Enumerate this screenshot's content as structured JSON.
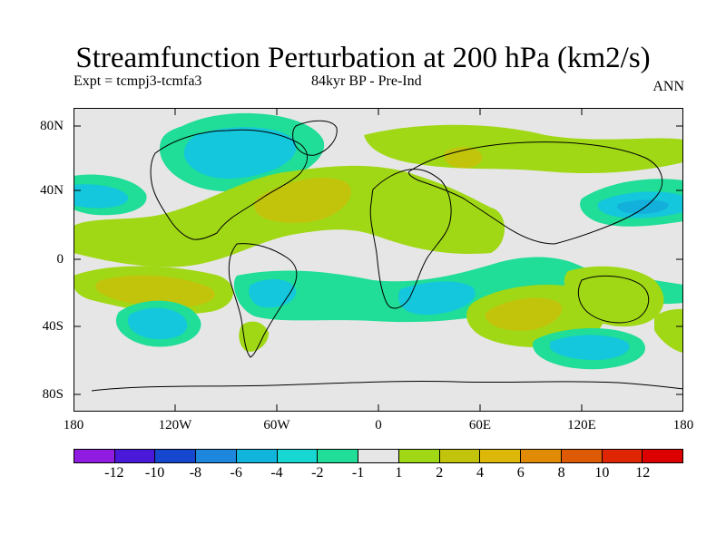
{
  "title": "Streamfunction Perturbation at 200 hPa (km2/s)",
  "left_label": "Expt = tcmpj3-tcmfa3",
  "center_label": "84kyr BP - Pre-Ind",
  "right_label": "ANN",
  "y_ticks": [
    "80N",
    "40N",
    "0",
    "40S",
    "80S"
  ],
  "x_ticks": [
    "180",
    "120W",
    "60W",
    "0",
    "60E",
    "120E",
    "180"
  ],
  "legend": {
    "labels": [
      "-12",
      "-10",
      "-8",
      "-6",
      "-4",
      "-2",
      "-1",
      "1",
      "2",
      "4",
      "6",
      "8",
      "10",
      "12"
    ],
    "colors": [
      "#8f1ce0",
      "#4a18d8",
      "#1547cf",
      "#1c87dd",
      "#11b5dc",
      "#17d7d2",
      "#20dd97",
      "#e6e6e6",
      "#a0d816",
      "#c2c40c",
      "#ddb808",
      "#e18a06",
      "#df5a04",
      "#df2604",
      "#dd0000"
    ]
  },
  "fill_colors": {
    "background": "#e6e6e6",
    "neg1": "#20dd97",
    "neg2": "#11d4d5",
    "neg4": "#14b8dc",
    "pos1": "#a0d816",
    "pos2": "#c2c40c"
  }
}
